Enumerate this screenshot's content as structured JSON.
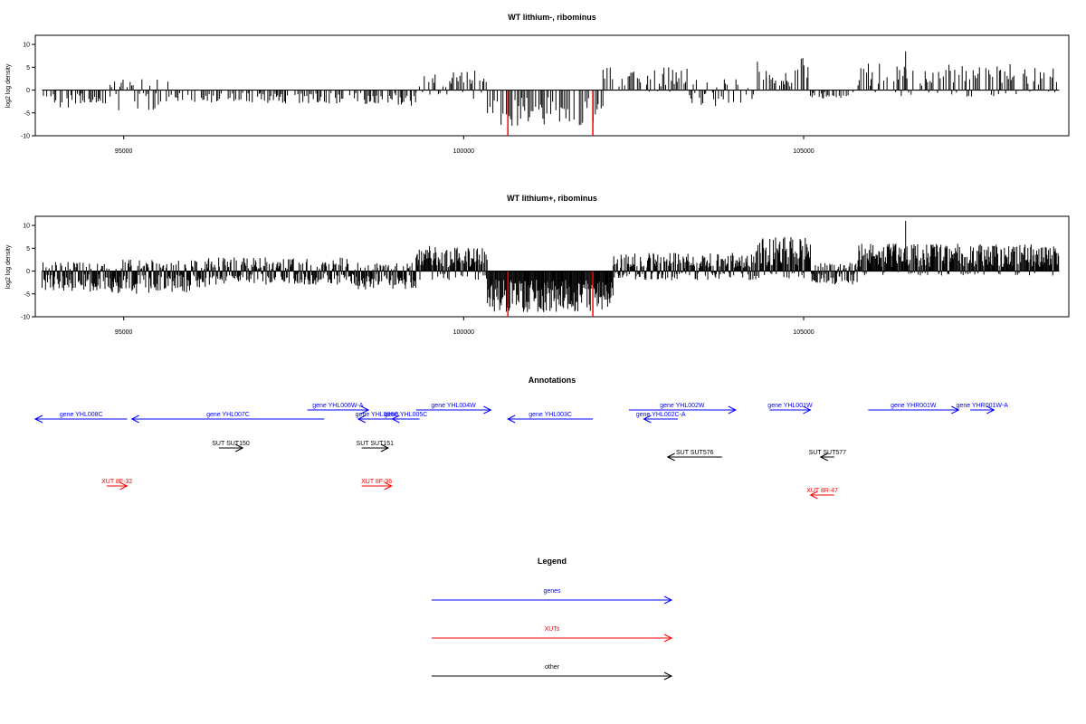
{
  "chart_data": [
    {
      "type": "bar",
      "title": "WT lithium-, ribominus",
      "xlabel": "",
      "ylabel": "log2 log density",
      "xlim": [
        93700,
        108900
      ],
      "ylim": [
        -10,
        12
      ],
      "x_ticks": [
        95000,
        100000,
        105000
      ],
      "x_tick_labels": [
        "95000",
        "100000",
        "105000"
      ],
      "y_ticks": [
        -10,
        -5,
        0,
        5,
        10
      ],
      "y_tick_labels": [
        "-10",
        "-5",
        "0",
        "5",
        "10"
      ],
      "data_extent": [
        93800,
        108760
      ],
      "series": [
        {
          "values_desc": "sparse bars",
          "segments": [
            {
              "from": 93800,
              "to": 94200,
              "amp": [
                -4,
                1
              ]
            },
            {
              "from": 94200,
              "to": 94800,
              "amp": [
                -3,
                0
              ]
            },
            {
              "from": 94800,
              "to": 95700,
              "amp": [
                -4.5,
                2.5
              ]
            },
            {
              "from": 95700,
              "to": 98500,
              "amp": [
                -3,
                0
              ]
            },
            {
              "from": 98500,
              "to": 99300,
              "amp": [
                -3.5,
                1
              ]
            },
            {
              "from": 99300,
              "to": 100000,
              "amp": [
                -1,
                4
              ]
            },
            {
              "from": 100000,
              "to": 100350,
              "amp": [
                -2,
                4.5
              ]
            },
            {
              "from": 100350,
              "to": 102050,
              "amp": [
                -8,
                0
              ]
            },
            {
              "from": 102050,
              "to": 103300,
              "amp": [
                -1,
                5
              ]
            },
            {
              "from": 103300,
              "to": 104300,
              "amp": [
                -3.5,
                3
              ]
            },
            {
              "from": 104300,
              "to": 104450,
              "amp": [
                0,
                7
              ]
            },
            {
              "from": 104450,
              "to": 104850,
              "amp": [
                0,
                4
              ]
            },
            {
              "from": 104850,
              "to": 105100,
              "amp": [
                0,
                7.5
              ]
            },
            {
              "from": 105100,
              "to": 105800,
              "amp": [
                -2,
                1
              ]
            },
            {
              "from": 105800,
              "to": 108760,
              "amp": [
                -1.5,
                6
              ]
            }
          ]
        },
        {
          "name": "",
          "color": "#ff0000",
          "highlight_x": [
            100650,
            101900
          ],
          "highlight_y": -10
        }
      ],
      "extra_spikes": [
        {
          "x": 106500,
          "y": 8.5
        }
      ]
    },
    {
      "type": "bar",
      "title": "WT lithium+, ribominus",
      "xlabel": "",
      "ylabel": "log2 log density",
      "xlim": [
        93700,
        108900
      ],
      "ylim": [
        -10,
        12
      ],
      "x_ticks": [
        95000,
        100000,
        105000
      ],
      "x_tick_labels": [
        "95000",
        "100000",
        "105000"
      ],
      "y_ticks": [
        -10,
        -5,
        0,
        5,
        10
      ],
      "y_tick_labels": [
        "-10",
        "-5",
        "0",
        "5",
        "10"
      ],
      "data_extent": [
        93800,
        108760
      ],
      "series": [
        {
          "values_desc": "dense bars",
          "segments": [
            {
              "from": 93800,
              "to": 94800,
              "amp": [
                -4.5,
                2
              ]
            },
            {
              "from": 94800,
              "to": 96200,
              "amp": [
                -5,
                2.5
              ]
            },
            {
              "from": 96200,
              "to": 98300,
              "amp": [
                -3,
                3
              ]
            },
            {
              "from": 98300,
              "to": 99300,
              "amp": [
                -4,
                2
              ]
            },
            {
              "from": 99300,
              "to": 100350,
              "amp": [
                -2,
                5.5
              ]
            },
            {
              "from": 100350,
              "to": 102200,
              "amp": [
                -9,
                0
              ]
            },
            {
              "from": 102200,
              "to": 104300,
              "amp": [
                -2,
                4
              ]
            },
            {
              "from": 104300,
              "to": 105100,
              "amp": [
                -2,
                7.5
              ]
            },
            {
              "from": 105100,
              "to": 105800,
              "amp": [
                -3,
                2
              ]
            },
            {
              "from": 105800,
              "to": 108760,
              "amp": [
                -1,
                6
              ]
            }
          ]
        },
        {
          "name": "",
          "color": "#ff0000",
          "highlight_x": [
            100650,
            101900
          ],
          "highlight_y": -10
        }
      ],
      "extra_spikes": [
        {
          "x": 106500,
          "y": 11
        }
      ]
    }
  ],
  "annotations": {
    "title": "Annotations",
    "features": [
      {
        "label": "gene YHL008C",
        "kind": "gene",
        "color": "#0000ff",
        "start": 93700,
        "end": 95050,
        "strand": "-",
        "row": 1
      },
      {
        "label": "gene YHL007C",
        "kind": "gene",
        "color": "#0000ff",
        "start": 95120,
        "end": 97950,
        "strand": "-",
        "row": 1
      },
      {
        "label": "gene YHL006W-A",
        "kind": "gene",
        "color": "#0000ff",
        "start": 97700,
        "end": 98600,
        "strand": "+",
        "row": 0
      },
      {
        "label": "gene YHL006C",
        "kind": "gene",
        "color": "#0000ff",
        "start": 98450,
        "end": 99000,
        "strand": "-",
        "row": 1
      },
      {
        "label": "gene YHL005C",
        "kind": "gene",
        "color": "#0000ff",
        "start": 98950,
        "end": 99350,
        "strand": "-",
        "row": 1
      },
      {
        "label": "gene YHL004W",
        "kind": "gene",
        "color": "#0000ff",
        "start": 99300,
        "end": 100400,
        "strand": "+",
        "row": 0
      },
      {
        "label": "gene YHL003C",
        "kind": "gene",
        "color": "#0000ff",
        "start": 100650,
        "end": 101900,
        "strand": "-",
        "row": 1
      },
      {
        "label": "gene YHL002W",
        "kind": "gene",
        "color": "#0000ff",
        "start": 102430,
        "end": 104000,
        "strand": "+",
        "row": 0
      },
      {
        "label": "gene YHL002C-A",
        "kind": "gene",
        "color": "#0000ff",
        "start": 102650,
        "end": 103150,
        "strand": "-",
        "row": 1
      },
      {
        "label": "gene YHL001W",
        "kind": "gene",
        "color": "#0000ff",
        "start": 104500,
        "end": 105100,
        "strand": "+",
        "row": 0
      },
      {
        "label": "gene YHR001W",
        "kind": "gene",
        "color": "#0000ff",
        "start": 105950,
        "end": 107280,
        "strand": "+",
        "row": 0
      },
      {
        "label": "gene YHR001W-A",
        "kind": "gene",
        "color": "#0000ff",
        "start": 107450,
        "end": 107800,
        "strand": "+",
        "row": 0
      },
      {
        "label": "SUT SUT150",
        "kind": "other",
        "color": "#000000",
        "start": 96400,
        "end": 96750,
        "strand": "+",
        "row": 2
      },
      {
        "label": "SUT SUT151",
        "kind": "other",
        "color": "#000000",
        "start": 98500,
        "end": 98890,
        "strand": "+",
        "row": 2
      },
      {
        "label": "SUT SUT576",
        "kind": "other",
        "color": "#000000",
        "start": 103000,
        "end": 103800,
        "strand": "-",
        "row": 3
      },
      {
        "label": "SUT SUT577",
        "kind": "other",
        "color": "#000000",
        "start": 105250,
        "end": 105450,
        "strand": "-",
        "row": 3
      },
      {
        "label": "XUT 8F-32",
        "kind": "XUT",
        "color": "#ff0000",
        "start": 94750,
        "end": 95050,
        "strand": "+",
        "row": 4
      },
      {
        "label": "XUT 8F-36",
        "kind": "XUT",
        "color": "#ff0000",
        "start": 98500,
        "end": 98940,
        "strand": "+",
        "row": 4
      },
      {
        "label": "XUT 8R-47",
        "kind": "XUT",
        "color": "#ff0000",
        "start": 105100,
        "end": 105450,
        "strand": "-",
        "row": 5
      }
    ]
  },
  "legend": {
    "title": "Legend",
    "items": [
      {
        "label": "genes",
        "color": "#0000ff"
      },
      {
        "label": "XUTs",
        "color": "#ff0000"
      },
      {
        "label": "other",
        "color": "#000000"
      }
    ]
  }
}
